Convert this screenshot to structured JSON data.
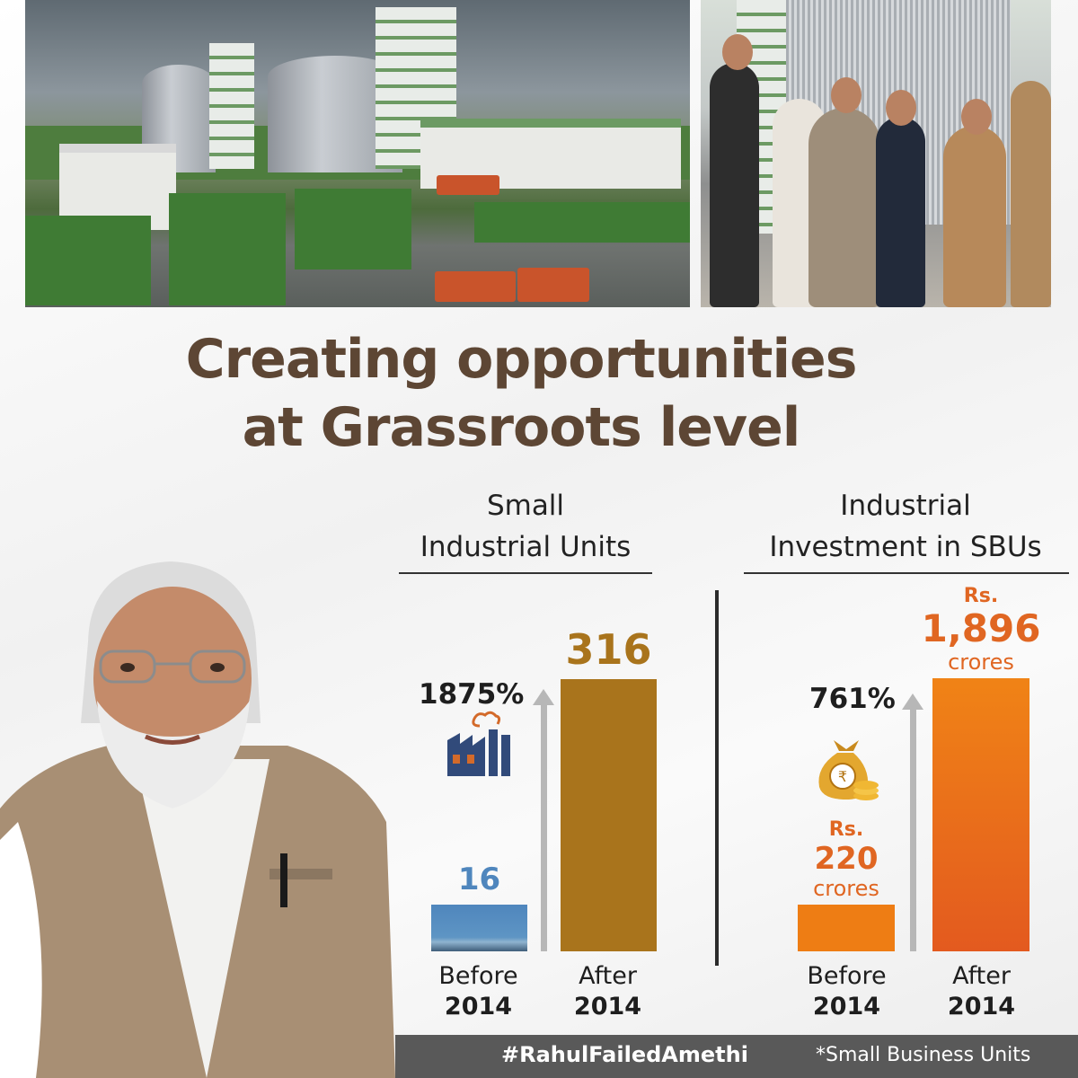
{
  "headline": {
    "line1": "Creating opportunities",
    "line2": "at Grassroots level"
  },
  "colors": {
    "headline": "#5d4634",
    "before_left_bar": "#4f86bd",
    "after_left_bar": "#a9741c",
    "before_right_bar": "#ee7d14",
    "after_right_bar": "#e35a1f",
    "orange_text": "#e06622",
    "footer": "#595959"
  },
  "icons": [
    "factory-icon",
    "money-bag-icon",
    "up-arrow-icon"
  ],
  "chart_data": [
    {
      "type": "bar",
      "title": "Small Industrial Units",
      "title_lines": [
        "Small",
        "Industrial Units"
      ],
      "categories": [
        "Before 2014",
        "After 2014"
      ],
      "category_lines": [
        [
          "Before",
          "2014"
        ],
        [
          "After",
          "2014"
        ]
      ],
      "values": [
        16,
        316
      ],
      "value_labels": [
        "16",
        "316"
      ],
      "growth_label": "1875%"
    },
    {
      "type": "bar",
      "title": "Industrial Investment in SBUs",
      "title_lines": [
        "Industrial",
        "Investment in SBUs"
      ],
      "categories": [
        "Before 2014",
        "After 2014"
      ],
      "category_lines": [
        [
          "Before",
          "2014"
        ],
        [
          "After",
          "2014"
        ]
      ],
      "values": [
        220,
        1896
      ],
      "unit": "Rs. crores",
      "value_labels": [
        {
          "prefix": "Rs.",
          "amount": "220",
          "suffix": "crores"
        },
        {
          "prefix": "Rs.",
          "amount": "1,896",
          "suffix": "crores"
        }
      ],
      "growth_label": "761%"
    }
  ],
  "footer": {
    "hashtag": "#RahulFailedAmethi",
    "footnote": "*Small Business Units"
  }
}
